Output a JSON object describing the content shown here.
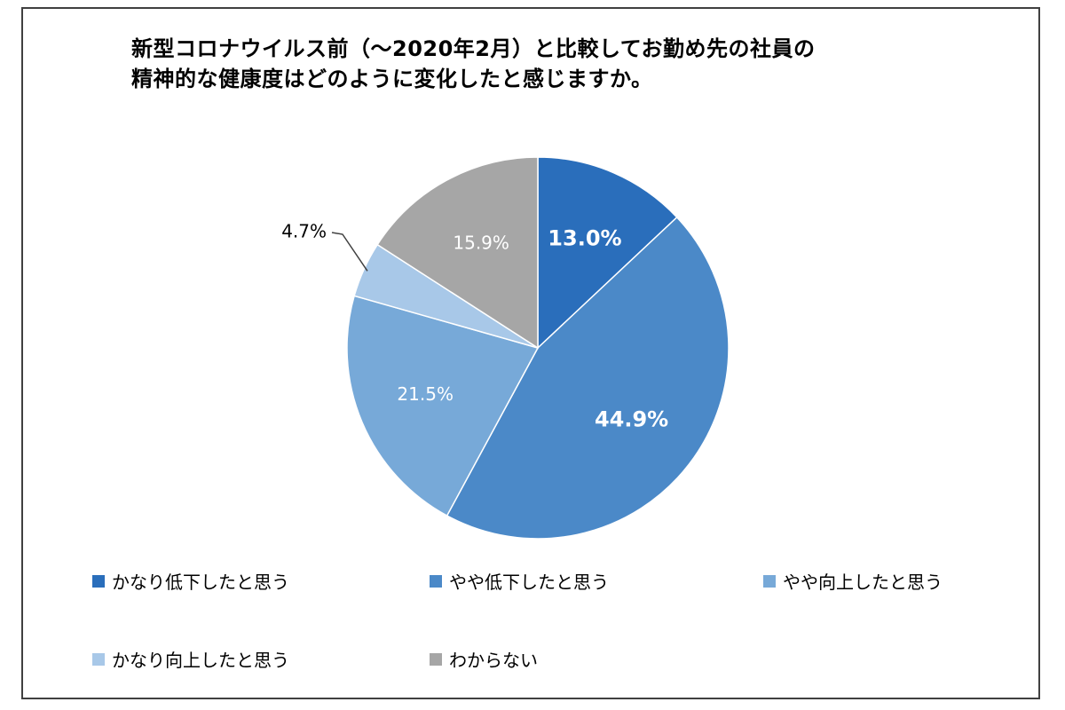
{
  "chart_data": {
    "type": "pie",
    "title_lines": [
      "新型コロナウイルス前（～2020年2月）と比較してお勤め先の社員の",
      "精神的な健康度はどのように変化したと感じますか。"
    ],
    "legend_placement": "bottom",
    "slices": [
      {
        "label": "かなり低下したと思う",
        "value": 13.0,
        "display": "13.0%",
        "color": "#2a6ebb"
      },
      {
        "label": "やや低下したと思う",
        "value": 44.9,
        "display": "44.9%",
        "color": "#4b89c8"
      },
      {
        "label": "やや向上したと思う",
        "value": 21.5,
        "display": "21.5%",
        "color": "#77a9d8"
      },
      {
        "label": "かなり向上したと思う",
        "value": 4.7,
        "display": "4.7%",
        "color": "#a8c8e8"
      },
      {
        "label": "わからない",
        "value": 15.9,
        "display": "15.9%",
        "color": "#a6a6a6"
      }
    ]
  }
}
